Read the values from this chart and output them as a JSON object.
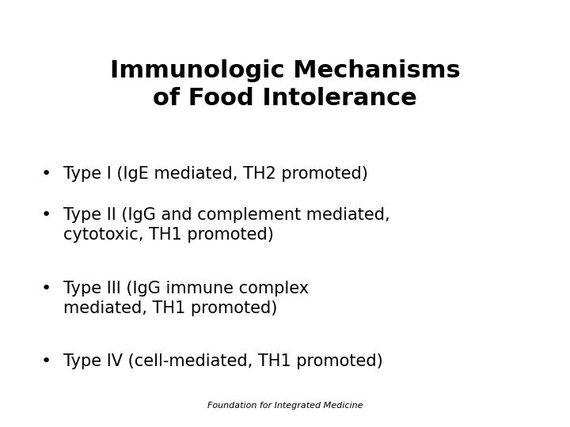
{
  "title_line1": "Immunologic Mechanisms",
  "title_line2": "of Food Intolerance",
  "bullet_items": [
    "Type I (IgE mediated, TH2 promoted)",
    "Type II (IgG and complement mediated,\ncytotoxic, TH1 promoted)",
    "Type III (IgG immune complex\nmediated, TH1 promoted)",
    "Type IV (cell-mediated, TH1 promoted)"
  ],
  "footer": "Foundation for Integrated Medicine",
  "background_color": "#ffffff",
  "text_color": "#000000",
  "title_fontsize": 22,
  "bullet_fontsize": 15,
  "footer_fontsize": 8
}
